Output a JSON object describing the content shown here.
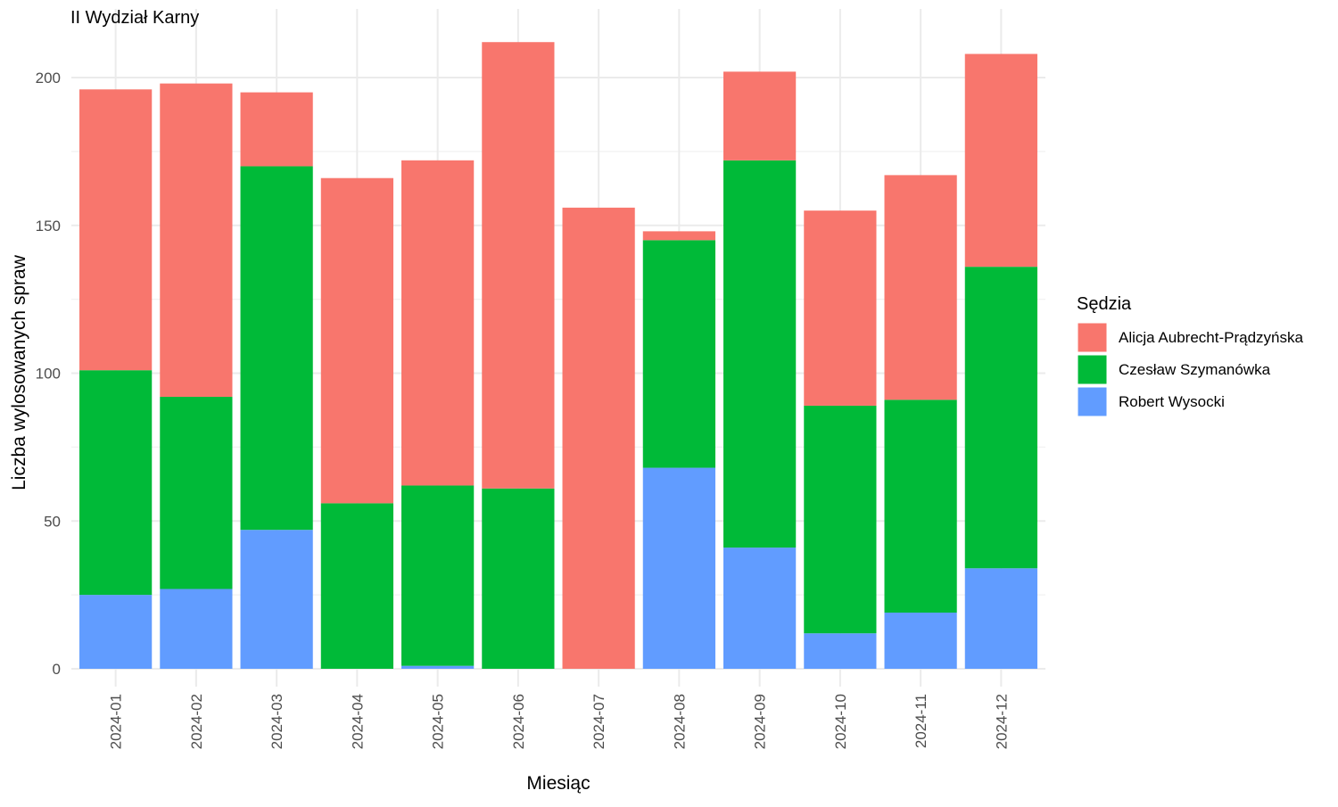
{
  "chart_data": {
    "type": "bar",
    "stacked": true,
    "title": "II Wydział Karny",
    "xlabel": "Miesiąc",
    "ylabel": "Liczba wylosowanych spraw",
    "ylim": [
      0,
      220
    ],
    "yticks": [
      0,
      50,
      100,
      150,
      200
    ],
    "grid": true,
    "legend": {
      "title": "Sędzia",
      "position": "right"
    },
    "categories": [
      "2024-01",
      "2024-02",
      "2024-03",
      "2024-04",
      "2024-05",
      "2024-06",
      "2024-07",
      "2024-08",
      "2024-09",
      "2024-10",
      "2024-11",
      "2024-12"
    ],
    "series": [
      {
        "name": "Robert Wysocki",
        "color": "#619CFF",
        "values": [
          25,
          27,
          47,
          0,
          1,
          0,
          0,
          68,
          41,
          12,
          19,
          34
        ]
      },
      {
        "name": "Czesław Szymanówka",
        "color": "#00BA38",
        "values": [
          76,
          65,
          123,
          56,
          61,
          61,
          0,
          77,
          131,
          77,
          72,
          102
        ]
      },
      {
        "name": "Alicja Aubrecht-Prądzyńska",
        "color": "#F8766D",
        "values": [
          95,
          106,
          25,
          110,
          110,
          151,
          156,
          3,
          30,
          66,
          76,
          72
        ]
      }
    ],
    "legend_order": [
      "Alicja Aubrecht-Prądzyńska",
      "Czesław Szymanówka",
      "Robert Wysocki"
    ]
  }
}
